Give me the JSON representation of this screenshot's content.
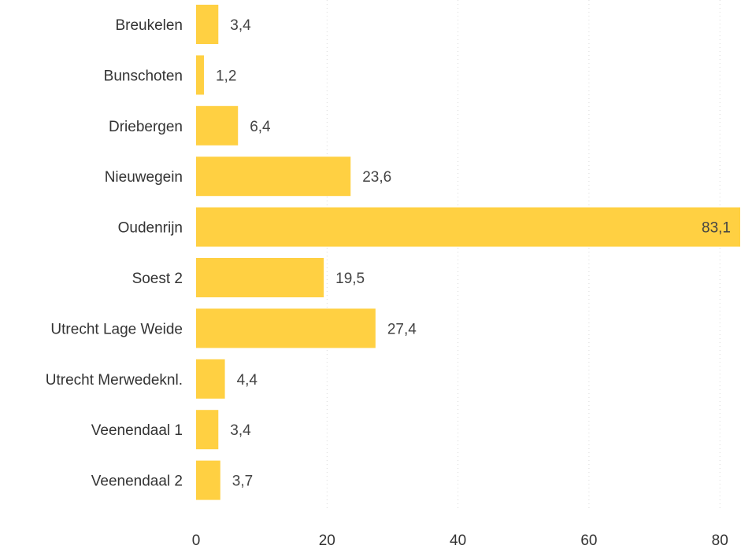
{
  "chart_data": {
    "type": "bar",
    "orientation": "horizontal",
    "categories": [
      "Breukelen",
      "Bunschoten",
      "Driebergen",
      "Nieuwegein",
      "Oudenrijn",
      "Soest 2",
      "Utrecht Lage Weide",
      "Utrecht Merwedeknl.",
      "Veenendaal 1",
      "Veenendaal 2"
    ],
    "values": [
      3.4,
      1.2,
      6.4,
      23.6,
      83.1,
      19.5,
      27.4,
      4.4,
      3.4,
      3.7
    ],
    "value_labels": [
      "3,4",
      "1,2",
      "6,4",
      "23,6",
      "83,1",
      "19,5",
      "27,4",
      "4,4",
      "3,4",
      "3,7"
    ],
    "x_ticks": [
      0,
      20,
      40,
      60,
      80
    ],
    "x_tick_labels": [
      "0",
      "20",
      "40",
      "60",
      "80"
    ],
    "xlim": [
      0,
      83.1
    ],
    "bar_color": "#FFD042",
    "grid": true,
    "title": "",
    "xlabel": "",
    "ylabel": ""
  }
}
